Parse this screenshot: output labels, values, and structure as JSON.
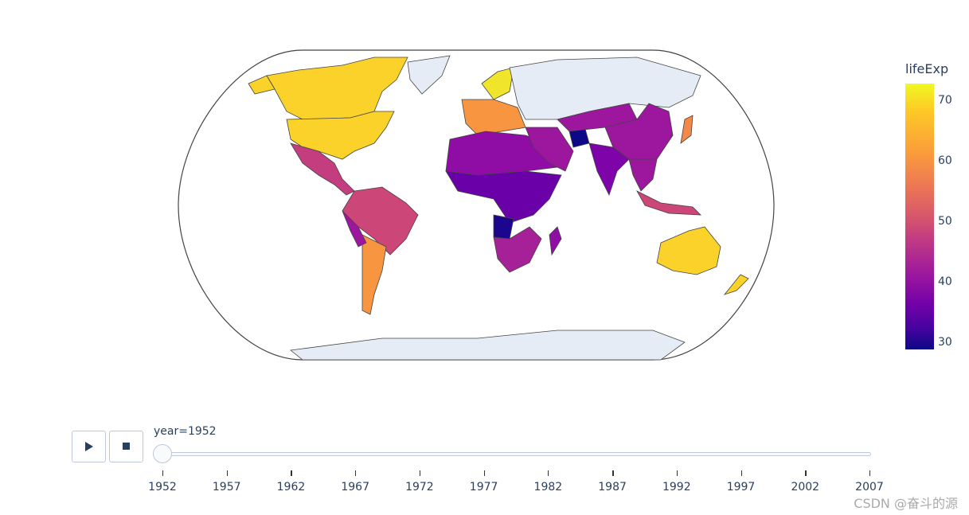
{
  "colorbar": {
    "title": "lifeExp",
    "range": [
      28.8,
      72.7
    ],
    "colorscale": "Plasma",
    "ticks": [
      {
        "value": 70,
        "label": "70"
      },
      {
        "value": 60,
        "label": "60"
      },
      {
        "value": 50,
        "label": "50"
      },
      {
        "value": 40,
        "label": "40"
      },
      {
        "value": 30,
        "label": "30"
      }
    ]
  },
  "map": {
    "projection": "natural earth",
    "land_no_data_color": "#e5ecf6",
    "border_color": "#444444"
  },
  "animation": {
    "play_icon": "play-icon",
    "stop_icon": "stop-icon",
    "current_label": "year=1952",
    "current_value": 1952,
    "steps": [
      "1952",
      "1957",
      "1962",
      "1967",
      "1972",
      "1977",
      "1982",
      "1987",
      "1992",
      "1997",
      "2002",
      "2007"
    ]
  },
  "watermark": "CSDN @奋斗的源"
}
